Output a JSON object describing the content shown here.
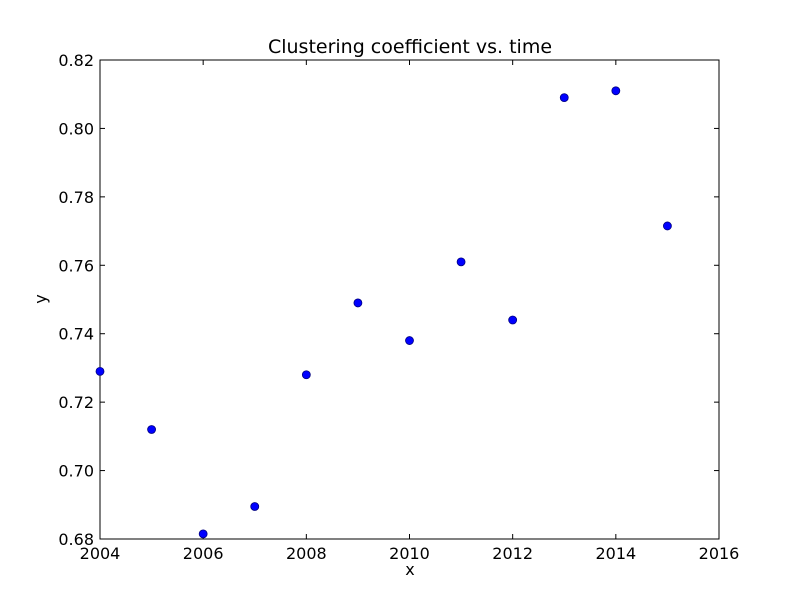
{
  "chart_data": {
    "type": "scatter",
    "title": "Clustering coefficient vs. time",
    "xlabel": "x",
    "ylabel": "y",
    "xlim": [
      2004,
      2016
    ],
    "ylim": [
      0.68,
      0.82
    ],
    "xticks": [
      2004,
      2006,
      2008,
      2010,
      2012,
      2014,
      2016
    ],
    "xtick_labels": [
      "2004",
      "2006",
      "2008",
      "2010",
      "2012",
      "2014",
      "2016"
    ],
    "yticks": [
      0.68,
      0.7,
      0.72,
      0.74,
      0.76,
      0.78,
      0.8,
      0.82
    ],
    "ytick_labels": [
      "0.68",
      "0.70",
      "0.72",
      "0.74",
      "0.76",
      "0.78",
      "0.80",
      "0.82"
    ],
    "grid": false,
    "marker_color": "#0000ff",
    "marker_edge_color": "#000080",
    "series": [
      {
        "x": [
          2004,
          2005,
          2006,
          2007,
          2008,
          2009,
          2010,
          2011,
          2012,
          2013,
          2014,
          2015
        ],
        "y": [
          0.729,
          0.712,
          0.6815,
          0.6895,
          0.728,
          0.749,
          0.738,
          0.761,
          0.744,
          0.809,
          0.811,
          0.7715
        ]
      }
    ]
  }
}
